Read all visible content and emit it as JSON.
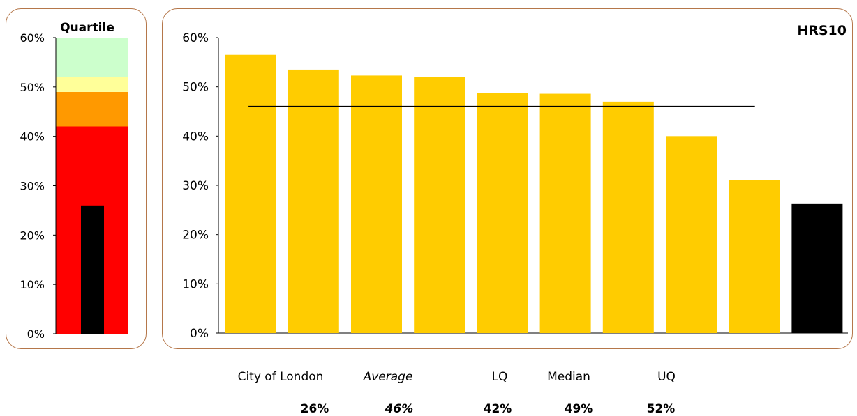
{
  "colors": {
    "bar": "#FFCC00",
    "highlight_bar": "#000000",
    "average_line": "#000000",
    "panel_border": "#B5774A",
    "quartile_bands": [
      "#FF0000",
      "#FF9900",
      "#FFFF99",
      "#CCFFCC"
    ]
  },
  "quartile_panel": {
    "title": "Quartile"
  },
  "main_panel": {
    "title": "HRS10"
  },
  "chart_data": [
    {
      "type": "bar",
      "title": "Quartile",
      "ylim": [
        0,
        0.6
      ],
      "yticks": [
        "0%",
        "10%",
        "20%",
        "30%",
        "40%",
        "50%",
        "60%"
      ],
      "bands": [
        {
          "from": 0,
          "to": 0.42,
          "color": "#FF0000"
        },
        {
          "from": 0.42,
          "to": 0.49,
          "color": "#FF9900"
        },
        {
          "from": 0.49,
          "to": 0.52,
          "color": "#FFFF99"
        },
        {
          "from": 0.52,
          "to": 0.6,
          "color": "#CCFFCC"
        }
      ],
      "values": [
        0.26
      ],
      "grid": false
    },
    {
      "type": "bar",
      "title": "HRS10",
      "ylim": [
        0,
        0.6
      ],
      "yticks": [
        "0%",
        "10%",
        "20%",
        "30%",
        "40%",
        "50%",
        "60%"
      ],
      "values": [
        0.565,
        0.535,
        0.523,
        0.52,
        0.488,
        0.486,
        0.47,
        0.4,
        0.31,
        0.262
      ],
      "highlight_index": 9,
      "average": 0.46,
      "grid": false
    }
  ],
  "summary": {
    "labels": [
      {
        "text": "City of London",
        "italic": false
      },
      {
        "text": "Average",
        "italic": true
      },
      {
        "text": "LQ",
        "italic": false
      },
      {
        "text": "Median",
        "italic": false
      },
      {
        "text": "UQ",
        "italic": false
      }
    ],
    "values": [
      {
        "text": "26%",
        "italic": false
      },
      {
        "text": "46%",
        "italic": true
      },
      {
        "text": "42%",
        "italic": false
      },
      {
        "text": "49%",
        "italic": false
      },
      {
        "text": "52%",
        "italic": false
      }
    ]
  }
}
